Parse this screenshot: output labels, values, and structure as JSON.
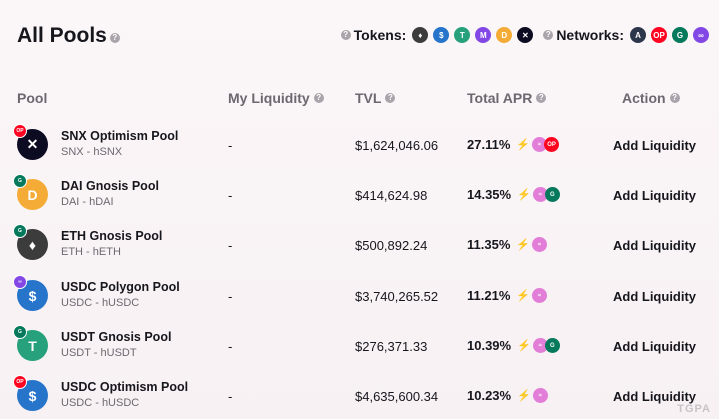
{
  "page": {
    "title": "All Pools"
  },
  "filters": {
    "tokens_label": "Tokens:",
    "networks_label": "Networks:",
    "tokens": [
      {
        "icon": "eth-icon",
        "color": "#3c3c3d",
        "glyph": "♦"
      },
      {
        "icon": "usdc-icon",
        "color": "#2775ca",
        "glyph": "$"
      },
      {
        "icon": "usdt-icon",
        "color": "#26a17b",
        "glyph": "T"
      },
      {
        "icon": "matic-icon",
        "color": "#8247e5",
        "glyph": "M"
      },
      {
        "icon": "dai-icon",
        "color": "#f5ac37",
        "glyph": "D"
      },
      {
        "icon": "snx-icon",
        "color": "#0b0b22",
        "glyph": "✕"
      }
    ],
    "networks": [
      {
        "icon": "arbitrum-icon",
        "color": "#2d374b",
        "glyph": "A"
      },
      {
        "icon": "optimism-icon",
        "color": "#ff0420",
        "glyph": "OP"
      },
      {
        "icon": "gnosis-icon",
        "color": "#04795b",
        "glyph": "G"
      },
      {
        "icon": "polygon-icon",
        "color": "#8247e5",
        "glyph": "∞"
      }
    ]
  },
  "table": {
    "headers": {
      "pool": "Pool",
      "my_liquidity": "My Liquidity",
      "tvl": "TVL",
      "total_apr": "Total APR",
      "action": "Action"
    },
    "rows": [
      {
        "name": "SNX Optimism Pool",
        "pair": "SNX - hSNX",
        "liquidity": "-",
        "tvl": "$1,624,046.06",
        "apr": "27.11%",
        "action": "Add Liquidity",
        "token_icon": "snx-icon",
        "token_color": "#0b0b22",
        "token_glyph": "✕",
        "network_icon": "optimism-icon",
        "network_color": "#ff0420",
        "network_glyph": "OP",
        "rewards": [
          {
            "icon": "hop-icon",
            "color": "#e27ed8",
            "glyph": "≈"
          },
          {
            "icon": "optimism-icon",
            "color": "#ff0420",
            "glyph": "OP"
          }
        ]
      },
      {
        "name": "DAI Gnosis Pool",
        "pair": "DAI - hDAI",
        "liquidity": "-",
        "tvl": "$414,624.98",
        "apr": "14.35%",
        "action": "Add Liquidity",
        "token_icon": "dai-icon",
        "token_color": "#f5ac37",
        "token_glyph": "D",
        "network_icon": "gnosis-icon",
        "network_color": "#04795b",
        "network_glyph": "G",
        "rewards": [
          {
            "icon": "hop-icon",
            "color": "#e27ed8",
            "glyph": "≈"
          },
          {
            "icon": "gnosis-icon",
            "color": "#04795b",
            "glyph": "G"
          }
        ]
      },
      {
        "name": "ETH Gnosis Pool",
        "pair": "ETH - hETH",
        "liquidity": "-",
        "tvl": "$500,892.24",
        "apr": "11.35%",
        "action": "Add Liquidity",
        "token_icon": "eth-icon",
        "token_color": "#3c3c3d",
        "token_glyph": "♦",
        "network_icon": "gnosis-icon",
        "network_color": "#04795b",
        "network_glyph": "G",
        "rewards": [
          {
            "icon": "hop-icon",
            "color": "#e27ed8",
            "glyph": "≈"
          }
        ]
      },
      {
        "name": "USDC Polygon Pool",
        "pair": "USDC - hUSDC",
        "liquidity": "-",
        "tvl": "$3,740,265.52",
        "apr": "11.21%",
        "action": "Add Liquidity",
        "token_icon": "usdc-icon",
        "token_color": "#2775ca",
        "token_glyph": "$",
        "network_icon": "polygon-icon",
        "network_color": "#8247e5",
        "network_glyph": "∞",
        "rewards": [
          {
            "icon": "hop-icon",
            "color": "#e27ed8",
            "glyph": "≈"
          }
        ]
      },
      {
        "name": "USDT Gnosis Pool",
        "pair": "USDT - hUSDT",
        "liquidity": "-",
        "tvl": "$276,371.33",
        "apr": "10.39%",
        "action": "Add Liquidity",
        "token_icon": "usdt-icon",
        "token_color": "#26a17b",
        "token_glyph": "T",
        "network_icon": "gnosis-icon",
        "network_color": "#04795b",
        "network_glyph": "G",
        "rewards": [
          {
            "icon": "hop-icon",
            "color": "#e27ed8",
            "glyph": "≈"
          },
          {
            "icon": "gnosis-icon",
            "color": "#04795b",
            "glyph": "G"
          }
        ]
      },
      {
        "name": "USDC Optimism Pool",
        "pair": "USDC - hUSDC",
        "liquidity": "-",
        "tvl": "$4,635,600.34",
        "apr": "10.23%",
        "action": "Add Liquidity",
        "token_icon": "usdc-icon",
        "token_color": "#2775ca",
        "token_glyph": "$",
        "network_icon": "optimism-icon",
        "network_color": "#ff0420",
        "network_glyph": "OP",
        "rewards": [
          {
            "icon": "hop-icon",
            "color": "#e27ed8",
            "glyph": "≈"
          }
        ]
      }
    ]
  },
  "watermark": "TGPA"
}
